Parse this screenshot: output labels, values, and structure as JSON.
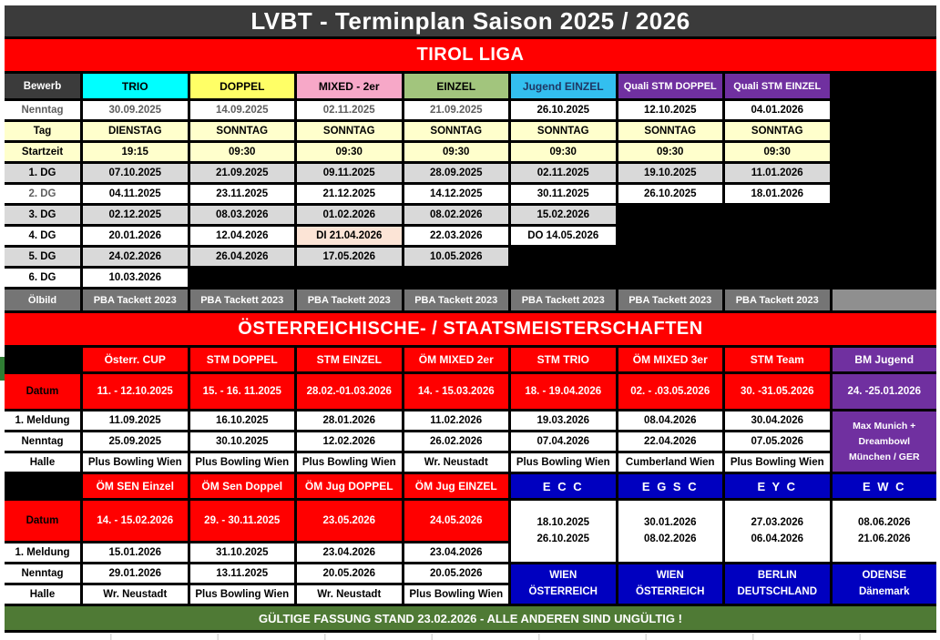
{
  "title": "LVBT - Terminplan Saison 2025 / 2026",
  "footer": {
    "text": "GÜLTIGE FASSUNG  STAND 23.02.2026 - ALLE ANDEREN SIND UNGÜLTIG !"
  },
  "colors": {
    "title_bar": "#3B3B3B",
    "red": "#FF0000",
    "cyan": "#00FFFF",
    "yellow": "#FFFF66",
    "pink": "#F7A8C8",
    "olive_green": "#A2C57D",
    "light_blue": "#33BFEF",
    "purple": "#7030A0",
    "deep_blue": "#0000C0",
    "light_yellow": "#FFFFCC",
    "gray_row": "#D9D9D9",
    "oil_gray": "#757575",
    "peach": "#FCE4D6",
    "green_footer": "#4F7A35"
  },
  "tirol": {
    "banner": "TIROL LIGA",
    "corner_label": "Bewerb",
    "columns": [
      "TRIO",
      "DOPPEL",
      "MIXED - 2er",
      "EINZEL",
      "Jugend EINZEL",
      "Quali STM DOPPEL",
      "Quali STM EINZEL"
    ],
    "rows": [
      {
        "label": "Nenntag",
        "cells": [
          "30.09.2025",
          "14.09.2025",
          "02.11.2025",
          "21.09.2025",
          "26.10.2025",
          "12.10.2025",
          "04.01.2026"
        ]
      },
      {
        "label": "Tag",
        "cells": [
          "DIENSTAG",
          "SONNTAG",
          "SONNTAG",
          "SONNTAG",
          "SONNTAG",
          "SONNTAG",
          "SONNTAG"
        ]
      },
      {
        "label": "Startzeit",
        "cells": [
          "19:15",
          "09:30",
          "09:30",
          "09:30",
          "09:30",
          "09:30",
          "09:30"
        ]
      },
      {
        "label": "1. DG",
        "cells": [
          "07.10.2025",
          "21.09.2025",
          "09.11.2025",
          "28.09.2025",
          "02.11.2025",
          "19.10.2025",
          "11.01.2026"
        ]
      },
      {
        "label": "2. DG",
        "cells": [
          "04.11.2025",
          "23.11.2025",
          "21.12.2025",
          "14.12.2025",
          "30.11.2025",
          "26.10.2025",
          "18.01.2026"
        ]
      },
      {
        "label": "3. DG",
        "cells": [
          "02.12.2025",
          "08.03.2026",
          "01.02.2026",
          "08.02.2026",
          "15.02.2026",
          "",
          ""
        ]
      },
      {
        "label": "4. DG",
        "cells": [
          "20.01.2026",
          "12.04.2026",
          "DI 21.04.2026",
          "22.03.2026",
          "DO 14.05.2026",
          "",
          ""
        ]
      },
      {
        "label": "5. DG",
        "cells": [
          "24.02.2026",
          "26.04.2026",
          "17.05.2026",
          "10.05.2026",
          "",
          "",
          ""
        ]
      },
      {
        "label": "6. DG",
        "cells": [
          "10.03.2026",
          "",
          "",
          "",
          "",
          "",
          ""
        ]
      }
    ],
    "oelbild_label": "Ölbild",
    "oelbild_value": "PBA Tackett 2023"
  },
  "meister": {
    "banner": "ÖSTERREICHISCHE- / STAATSMEISTERSCHAFTEN",
    "blockA": {
      "headers": [
        "Österr. CUP",
        "STM DOPPEL",
        "STM EINZEL",
        "ÖM MIXED 2er",
        "STM TRIO",
        "ÖM MIXED 3er",
        "STM Team",
        "BM Jugend"
      ],
      "datum_label": "Datum",
      "datum": [
        "11. - 12.10.2025",
        "15. - 16. 11.2025",
        "28.02.-01.03.2026",
        "14. - 15.03.2026",
        "18. - 19.04.2026",
        "02. - .03.05.2026",
        "30. -31.05.2026",
        "24. -25.01.2026"
      ],
      "meldung_label": "1. Meldung",
      "meldung": [
        "11.09.2025",
        "16.10.2025",
        "28.01.2026",
        "11.02.2026",
        "19.03.2026",
        "08.04.2026",
        "30.04.2026"
      ],
      "nenntag_label": "Nenntag",
      "nenntag": [
        "25.09.2025",
        "30.10.2025",
        "12.02.2026",
        "26.02.2026",
        "07.04.2026",
        "22.04.2026",
        "07.05.2026"
      ],
      "halle_label": "Halle",
      "halle": [
        "Plus Bowling Wien",
        "Plus Bowling Wien",
        "Plus Bowling Wien",
        "Wr. Neustadt",
        "Plus Bowling Wien",
        "Cumberland Wien",
        "Plus Bowling Wien"
      ],
      "bm_line1": "Max Munich +",
      "bm_line2": "Dreambowl",
      "bm_line3": "München / GER"
    },
    "blockB": {
      "headers": [
        "ÖM SEN Einzel",
        "ÖM Sen Doppel",
        "ÖM Jug DOPPEL",
        "ÖM Jug EINZEL",
        "E C C",
        "E G S C",
        "E Y C",
        "E W C"
      ],
      "datum_label": "Datum",
      "datum": [
        "14. - 15.02.2026",
        "29. - 30.11.2025",
        "23.05.2026",
        "24.05.2026"
      ],
      "meldung_label": "1. Meldung",
      "meldung": [
        "15.01.2026",
        "31.10.2025",
        "23.04.2026",
        "23.04.2026"
      ],
      "nenntag_label": "Nenntag",
      "nenntag": [
        "29.01.2026",
        "13.11.2025",
        "20.05.2026",
        "20.05.2026"
      ],
      "halle_label": "Halle",
      "halle": [
        "Wr. Neustadt",
        "Plus Bowling Wien",
        "Wr. Neustadt",
        "Plus Bowling Wien"
      ],
      "events": [
        {
          "date1": "18.10.2025",
          "date2": "26.10.2025",
          "city": "WIEN",
          "country": "ÖSTERREICH"
        },
        {
          "date1": "30.01.2026",
          "date2": "08.02.2026",
          "city": "WIEN",
          "country": "ÖSTERREICH"
        },
        {
          "date1": "27.03.2026",
          "date2": "06.04.2026",
          "city": "BERLIN",
          "country": "DEUTSCHLAND"
        },
        {
          "date1": "08.06.2026",
          "date2": "21.06.2026",
          "city": "ODENSE",
          "country": "Dänemark"
        }
      ]
    }
  }
}
